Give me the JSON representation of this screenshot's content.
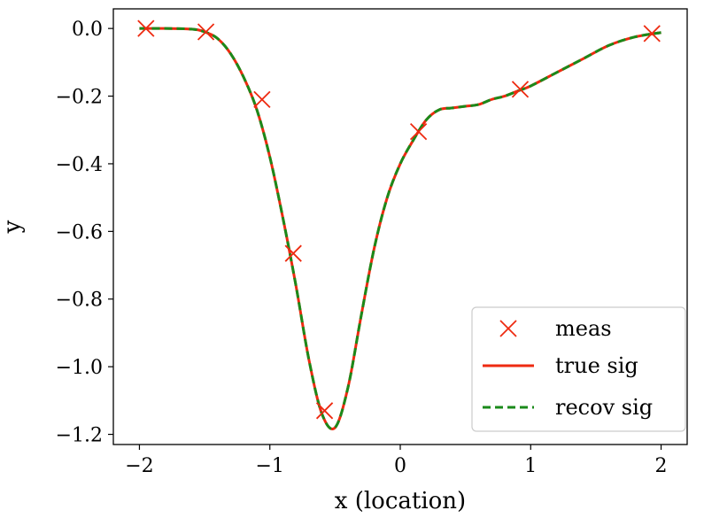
{
  "chart_data": {
    "type": "line",
    "xlabel": "x (location)",
    "ylabel": "y",
    "xlim": [
      -2.2,
      2.2
    ],
    "ylim": [
      -1.23,
      0.058
    ],
    "xticks": [
      -2,
      -1,
      0,
      1,
      2
    ],
    "xtick_labels": [
      "−2",
      "−1",
      "0",
      "1",
      "2"
    ],
    "yticks": [
      0.0,
      -0.2,
      -0.4,
      -0.6,
      -0.8,
      -1.0,
      -1.2
    ],
    "ytick_labels": [
      "0.0",
      "−0.2",
      "−0.4",
      "−0.6",
      "−0.8",
      "−1.0",
      "−1.2"
    ],
    "grid": false,
    "legend_position": "lower-right",
    "colors": {
      "true_sig": "#ee2a10",
      "recov_sig": "#1a8a1a",
      "meas": "#ee2a10"
    },
    "series": [
      {
        "name": "meas",
        "style": "markers-x",
        "x": [
          -1.95,
          -1.49,
          -1.06,
          -0.82,
          -0.58,
          0.14,
          0.92,
          1.93
        ],
        "y": [
          0.0,
          -0.01,
          -0.21,
          -0.665,
          -1.13,
          -0.305,
          -0.18,
          -0.015
        ]
      },
      {
        "name": "true sig",
        "style": "solid-line",
        "x": [
          -2.0,
          -1.8,
          -1.6,
          -1.5,
          -1.4,
          -1.3,
          -1.2,
          -1.1,
          -1.0,
          -0.9,
          -0.8,
          -0.7,
          -0.6,
          -0.5,
          -0.4,
          -0.3,
          -0.2,
          -0.1,
          0.0,
          0.1,
          0.2,
          0.3,
          0.4,
          0.5,
          0.6,
          0.7,
          0.8,
          0.9,
          1.0,
          1.2,
          1.4,
          1.6,
          1.8,
          2.0
        ],
        "y": [
          0.0,
          0.0,
          -0.002,
          -0.01,
          -0.03,
          -0.075,
          -0.145,
          -0.24,
          -0.38,
          -0.56,
          -0.76,
          -0.98,
          -1.14,
          -1.18,
          -1.06,
          -0.85,
          -0.65,
          -0.5,
          -0.4,
          -0.33,
          -0.27,
          -0.24,
          -0.235,
          -0.23,
          -0.225,
          -0.21,
          -0.2,
          -0.185,
          -0.17,
          -0.13,
          -0.09,
          -0.05,
          -0.025,
          -0.012
        ]
      },
      {
        "name": "recov sig",
        "style": "dashed-line",
        "x": [
          -2.0,
          -1.8,
          -1.6,
          -1.5,
          -1.4,
          -1.3,
          -1.2,
          -1.1,
          -1.0,
          -0.9,
          -0.8,
          -0.7,
          -0.6,
          -0.5,
          -0.4,
          -0.3,
          -0.2,
          -0.1,
          0.0,
          0.1,
          0.2,
          0.3,
          0.4,
          0.5,
          0.6,
          0.7,
          0.8,
          0.9,
          1.0,
          1.2,
          1.4,
          1.6,
          1.8,
          2.0
        ],
        "y": [
          0.0,
          0.0,
          -0.002,
          -0.01,
          -0.03,
          -0.075,
          -0.145,
          -0.24,
          -0.38,
          -0.56,
          -0.76,
          -0.98,
          -1.14,
          -1.18,
          -1.06,
          -0.85,
          -0.65,
          -0.5,
          -0.4,
          -0.33,
          -0.27,
          -0.24,
          -0.235,
          -0.23,
          -0.225,
          -0.21,
          -0.2,
          -0.185,
          -0.17,
          -0.13,
          -0.09,
          -0.05,
          -0.025,
          -0.012
        ]
      }
    ]
  }
}
